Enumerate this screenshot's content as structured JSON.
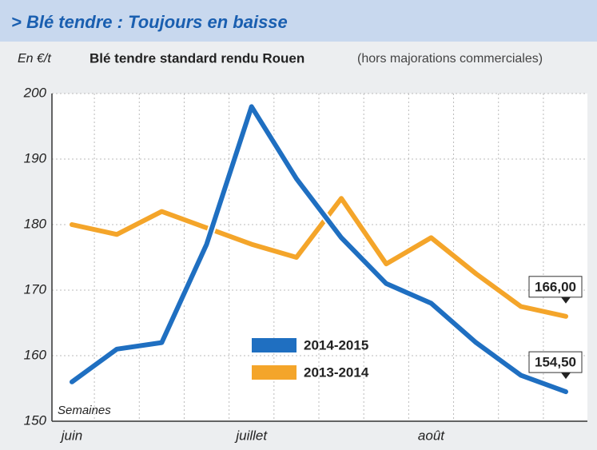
{
  "chart_data": {
    "type": "line",
    "title": "> Blé tendre : Toujours en baisse",
    "y_label": "En €/t",
    "subtitle": "Blé tendre standard rendu Rouen",
    "subtitle_note": "(hors majorations commerciales)",
    "x_label": "Semaines",
    "categories": [
      "juin",
      null,
      null,
      null,
      "juillet",
      null,
      null,
      null,
      "août",
      null,
      null,
      null
    ],
    "series": [
      {
        "name": "2014-2015",
        "color": "#1f6fc1",
        "values": [
          156,
          161,
          162,
          177,
          198,
          187,
          178,
          171,
          168,
          162,
          157,
          154.5
        ],
        "value_labels": [
          null,
          null,
          null,
          null,
          null,
          null,
          null,
          null,
          null,
          null,
          null,
          "154,50"
        ]
      },
      {
        "name": "2013-2014",
        "color": "#f4a52a",
        "values": [
          180,
          178.5,
          182,
          179.5,
          177,
          175,
          184,
          174,
          178,
          172.5,
          167.5,
          166
        ],
        "value_labels": [
          null,
          null,
          null,
          null,
          null,
          null,
          null,
          null,
          null,
          null,
          null,
          "166,00"
        ]
      }
    ],
    "ylim": [
      150,
      200
    ],
    "yticks": [
      150,
      160,
      170,
      180,
      190,
      200
    ],
    "grid": true
  }
}
